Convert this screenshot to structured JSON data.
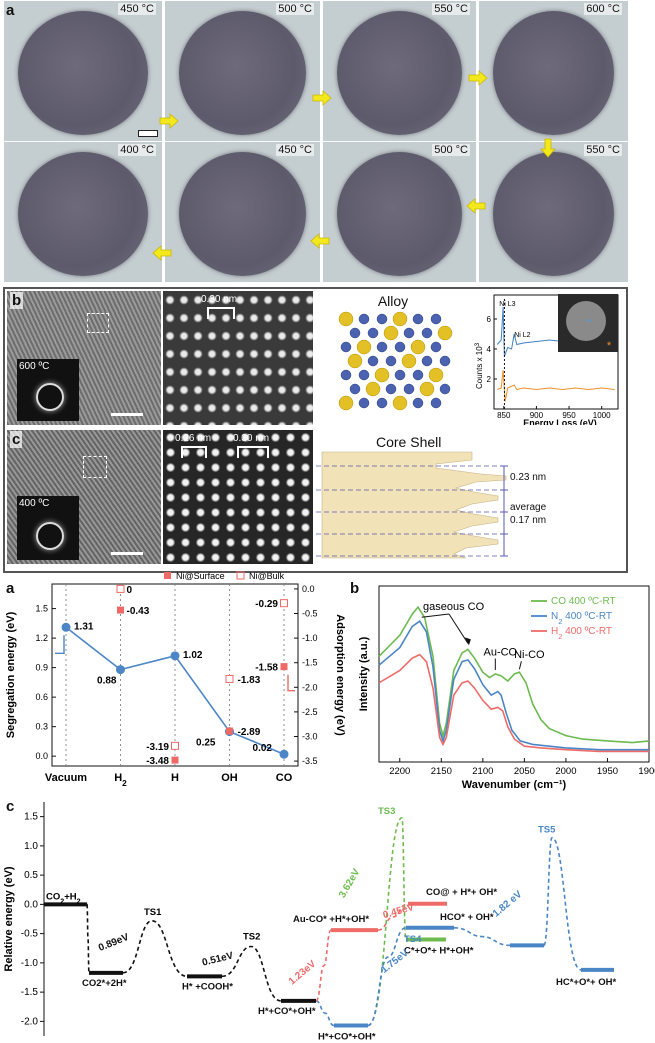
{
  "fig_top": {
    "panel_a": "a",
    "row1_temps": [
      "450 °C",
      "500 °C",
      "550 °C",
      "600 °C"
    ],
    "row2_temps": [
      "400 °C",
      "450 °C",
      "500 °C",
      "550 °C"
    ],
    "panel_b": "b",
    "panel_c": "c",
    "b_inset_temp": "600 ºC",
    "c_inset_temp": "400 ºC",
    "b_spacing": "0.30 nm",
    "c_spacing_1": "0.26 nm",
    "c_spacing_2": "0.30 nm",
    "alloy_title": "Alloy",
    "core_shell_title": "Core Shell",
    "cs_023": "0.23 nm",
    "cs_average": "average",
    "cs_017": "0.17 nm",
    "eels": {
      "ni_l3": "Ni L3",
      "ni_l2": "Ni L2",
      "ylabel": "Counts x 10",
      "ylabel_sup": "3",
      "xlabel": "Energy Loss (eV)",
      "x_ticks": [
        "850",
        "900",
        "950",
        "1000"
      ],
      "y_ticks": [
        "2",
        "4",
        "6"
      ],
      "xlim": [
        835,
        1025
      ],
      "ylim": [
        0,
        7.6
      ],
      "blue": [
        [
          840,
          4.3
        ],
        [
          846,
          4.6
        ],
        [
          849,
          6.8
        ],
        [
          851,
          3.5
        ],
        [
          856,
          4.1
        ],
        [
          862,
          4.0
        ],
        [
          866,
          5.0
        ],
        [
          870,
          4.3
        ],
        [
          880,
          4.4
        ],
        [
          900,
          4.5
        ],
        [
          920,
          4.6
        ],
        [
          940,
          4.5
        ],
        [
          960,
          4.6
        ],
        [
          980,
          4.5
        ],
        [
          1000,
          4.6
        ],
        [
          1020,
          4.5
        ]
      ],
      "orange": [
        [
          840,
          1.3
        ],
        [
          846,
          1.4
        ],
        [
          849,
          2.6
        ],
        [
          852,
          0.5
        ],
        [
          856,
          1.4
        ],
        [
          866,
          1.6
        ],
        [
          870,
          1.3
        ],
        [
          880,
          1.4
        ],
        [
          900,
          1.3
        ],
        [
          920,
          1.4
        ],
        [
          940,
          1.3
        ],
        [
          960,
          1.4
        ],
        [
          980,
          1.3
        ],
        [
          1000,
          1.4
        ],
        [
          1020,
          1.3
        ]
      ]
    }
  },
  "fig_bottom": {
    "panel_a": "a",
    "panel_b": "b",
    "panel_c": "c"
  },
  "chart_data": [
    {
      "type": "line",
      "id": "segregation-adsorption",
      "categories": [
        "Vacuum",
        "H2",
        "H",
        "OH",
        "CO"
      ],
      "category_labels": [
        {
          "text": "Vacuum",
          "sub": ""
        },
        {
          "text": "H",
          "sub": "2"
        },
        {
          "text": "H",
          "sub": ""
        },
        {
          "text": "OH",
          "sub": ""
        },
        {
          "text": "CO",
          "sub": ""
        }
      ],
      "ylabel": "Segregation energy (eV)",
      "y2label": "Adsorption energy (eV)",
      "ylim": [
        -0.1,
        1.75
      ],
      "y2lim": [
        -3.6,
        0.1
      ],
      "y_ticks": [
        "0.0",
        "0.3",
        "0.6",
        "0.9",
        "1.2",
        "1.5"
      ],
      "y2_ticks": [
        "0.0",
        "-0.5",
        "-1.0",
        "-1.5",
        "-2.0",
        "-2.5",
        "-3.0",
        "-3.5"
      ],
      "legend": [
        {
          "name": "Ni@Surface",
          "marker": "filled-square"
        },
        {
          "name": "Ni@Bulk",
          "marker": "open-square"
        }
      ],
      "segregation": {
        "values": [
          1.31,
          0.88,
          1.02,
          0.25,
          0.02
        ],
        "labels": [
          "1.31",
          "0.88",
          "1.02",
          "0.25",
          "0.02"
        ]
      },
      "ni_surface": {
        "values": [
          null,
          -0.43,
          -3.48,
          -2.89,
          -1.58
        ],
        "labels": [
          "",
          "-0.43",
          "-3.48",
          "-2.89",
          "-1.58"
        ]
      },
      "ni_bulk": {
        "values": [
          null,
          0,
          -3.19,
          -1.83,
          -0.29
        ],
        "labels": [
          "",
          "0",
          "-3.19",
          "-1.83",
          "-0.29"
        ]
      },
      "colors": {
        "line": "#4c86c6",
        "marker": "#ef6a66"
      }
    },
    {
      "type": "line",
      "id": "ftir",
      "xlabel": "Wavenumber (cm⁻¹)",
      "ylabel": "Intensity (a.u.)",
      "xlim": [
        2225,
        1900
      ],
      "x_ticks": [
        "2200",
        "2150",
        "2100",
        "2050",
        "2000",
        "1950",
        "1900"
      ],
      "annotations": [
        "gaseous CO",
        "Au-CO",
        "Ni-CO"
      ],
      "series": [
        {
          "name": "CO 400 ºC-RT",
          "label_main": "CO 400 ºC-RT",
          "label_sub": "",
          "color": "#6dbb4f",
          "points": [
            [
              2225,
              0.6
            ],
            [
              2200,
              0.72
            ],
            [
              2185,
              0.84
            ],
            [
              2178,
              0.88
            ],
            [
              2170,
              0.82
            ],
            [
              2160,
              0.6
            ],
            [
              2152,
              0.22
            ],
            [
              2148,
              0.15
            ],
            [
              2144,
              0.22
            ],
            [
              2135,
              0.52
            ],
            [
              2125,
              0.62
            ],
            [
              2118,
              0.64
            ],
            [
              2110,
              0.59
            ],
            [
              2100,
              0.51
            ],
            [
              2092,
              0.48
            ],
            [
              2085,
              0.5
            ],
            [
              2078,
              0.49
            ],
            [
              2070,
              0.46
            ],
            [
              2062,
              0.5
            ],
            [
              2056,
              0.51
            ],
            [
              2048,
              0.45
            ],
            [
              2040,
              0.33
            ],
            [
              2030,
              0.24
            ],
            [
              2020,
              0.19
            ],
            [
              2000,
              0.15
            ],
            [
              1980,
              0.13
            ],
            [
              1950,
              0.12
            ],
            [
              1920,
              0.11
            ],
            [
              1900,
              0.12
            ]
          ]
        },
        {
          "name": "N2 400 ºC-RT",
          "label_main": "N",
          "label_sub": "2",
          "label_rest": " 400 ºC-RT",
          "color": "#4a86c6",
          "points": [
            [
              2225,
              0.55
            ],
            [
              2200,
              0.65
            ],
            [
              2185,
              0.77
            ],
            [
              2176,
              0.8
            ],
            [
              2168,
              0.74
            ],
            [
              2160,
              0.54
            ],
            [
              2152,
              0.18
            ],
            [
              2148,
              0.12
            ],
            [
              2144,
              0.18
            ],
            [
              2135,
              0.47
            ],
            [
              2125,
              0.57
            ],
            [
              2118,
              0.58
            ],
            [
              2110,
              0.53
            ],
            [
              2100,
              0.44
            ],
            [
              2090,
              0.38
            ],
            [
              2082,
              0.4
            ],
            [
              2078,
              0.38
            ],
            [
              2072,
              0.28
            ],
            [
              2065,
              0.18
            ],
            [
              2055,
              0.12
            ],
            [
              2040,
              0.1
            ],
            [
              2020,
              0.09
            ],
            [
              2000,
              0.08
            ],
            [
              1960,
              0.07
            ],
            [
              1920,
              0.07
            ],
            [
              1900,
              0.07
            ]
          ]
        },
        {
          "name": "H2 400 ºC-RT",
          "label_main": "H",
          "label_sub": "2",
          "label_rest": " 400 ºC-RT",
          "color": "#ee6b68",
          "points": [
            [
              2225,
              0.45
            ],
            [
              2200,
              0.52
            ],
            [
              2185,
              0.59
            ],
            [
              2176,
              0.61
            ],
            [
              2168,
              0.57
            ],
            [
              2160,
              0.42
            ],
            [
              2152,
              0.14
            ],
            [
              2148,
              0.1
            ],
            [
              2144,
              0.14
            ],
            [
              2135,
              0.38
            ],
            [
              2125,
              0.45
            ],
            [
              2118,
              0.46
            ],
            [
              2110,
              0.42
            ],
            [
              2100,
              0.35
            ],
            [
              2090,
              0.3
            ],
            [
              2082,
              0.31
            ],
            [
              2076,
              0.29
            ],
            [
              2070,
              0.2
            ],
            [
              2062,
              0.13
            ],
            [
              2050,
              0.09
            ],
            [
              2030,
              0.08
            ],
            [
              2000,
              0.07
            ],
            [
              1960,
              0.06
            ],
            [
              1920,
              0.06
            ],
            [
              1900,
              0.06
            ]
          ]
        }
      ]
    },
    {
      "type": "line",
      "id": "energy-profile",
      "ylabel": "Relative energy (eV)",
      "ylim": [
        -2.25,
        1.75
      ],
      "y_ticks": [
        "-2.0",
        "-1.5",
        "-1.0",
        "-0.5",
        "0.0",
        "0.5",
        "1.0",
        "1.5"
      ],
      "levels": [
        {
          "label": "CO2+H2",
          "label_main": "CO",
          "label_sub": "2",
          "label_rest": "+H",
          "label_sub2": "2",
          "energy": 0.0,
          "color": "#111111"
        },
        {
          "label": "CO2*+2H*",
          "energy": -1.17,
          "color": "#111111"
        },
        {
          "label": "H* +COOH*",
          "energy": -1.23,
          "color": "#111111"
        },
        {
          "label": "H*+CO*+OH*",
          "energy": -1.65,
          "color": "#111111"
        },
        {
          "label": "H*+CO*+OH*",
          "energy": -2.07,
          "color": "#4a86c6"
        },
        {
          "label": "Au-CO* +H*+OH*",
          "energy": -0.44,
          "color": "#ee6b68"
        },
        {
          "label": "CO@ + H*+ OH*",
          "energy": 0.01,
          "color": "#ee6b68"
        },
        {
          "label": "HCO* + OH*",
          "energy": -0.4,
          "color": "#4a86c6"
        },
        {
          "label": "C*+O*+ H*+OH*",
          "energy": -0.6,
          "color": "#6dbb4f"
        },
        {
          "label": "HC*+O*+ OH*",
          "energy": -1.12,
          "color": "#4a86c6"
        }
      ],
      "transition_states": [
        {
          "label": "TS1",
          "energy": -0.28
        },
        {
          "label": "TS2",
          "energy": -0.72
        },
        {
          "label": "TS3",
          "energy": 1.48
        },
        {
          "label": "TS4",
          "energy": -0.44
        },
        {
          "label": "TS5",
          "energy": 1.14
        }
      ],
      "barriers": [
        {
          "label": "0.89eV",
          "color": "#111111"
        },
        {
          "label": "0.51eV",
          "color": "#111111"
        },
        {
          "label": "1.23eV",
          "color": "#ee6b68"
        },
        {
          "label": "0.45eV",
          "color": "#ee6b68"
        },
        {
          "label": "3.62eV",
          "color": "#6dbb4f"
        },
        {
          "label": "1.75eV",
          "color": "#4a86c6"
        },
        {
          "label": "1.82 eV",
          "color": "#4a86c6"
        }
      ]
    }
  ]
}
